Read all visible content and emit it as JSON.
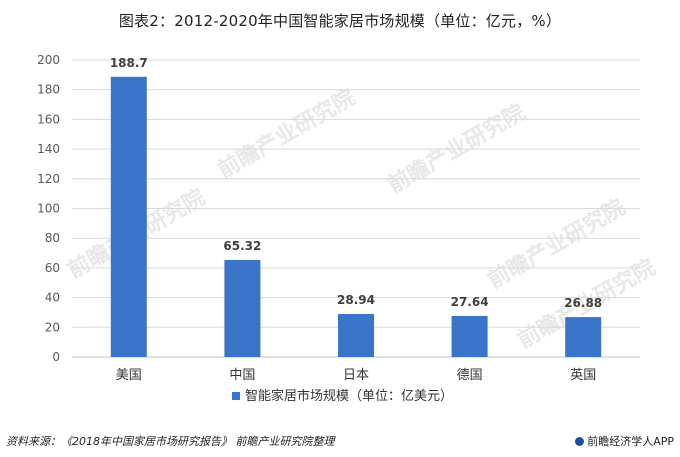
{
  "title": "图表2：2012-2020年中国智能家居市场规模（单位：亿元，%）",
  "chart_data": {
    "type": "bar",
    "title": "图表2：2012-2020年中国智能家居市场规模（单位：亿元，%）",
    "categories": [
      "美国",
      "中国",
      "日本",
      "德国",
      "英国"
    ],
    "series": [
      {
        "name": "智能家居市场规模（单位：亿美元）",
        "values": [
          188.7,
          65.32,
          28.94,
          27.64,
          26.88
        ],
        "color": "#3a74c8"
      }
    ],
    "data_labels": [
      "188.7",
      "65.32",
      "28.94",
      "27.64",
      "26.88"
    ],
    "ylim": [
      0,
      200
    ],
    "yticks": [
      0,
      20,
      40,
      60,
      80,
      100,
      120,
      140,
      160,
      180,
      200
    ],
    "grid": true,
    "legend": "bottom",
    "xlabel": "",
    "ylabel": ""
  },
  "watermark": "前瞻产业研究院",
  "footer": {
    "source": "资料来源：《2018年中国家居市场研究报告》 前瞻产业研究院整理",
    "brand": "前瞻经济学人APP"
  }
}
